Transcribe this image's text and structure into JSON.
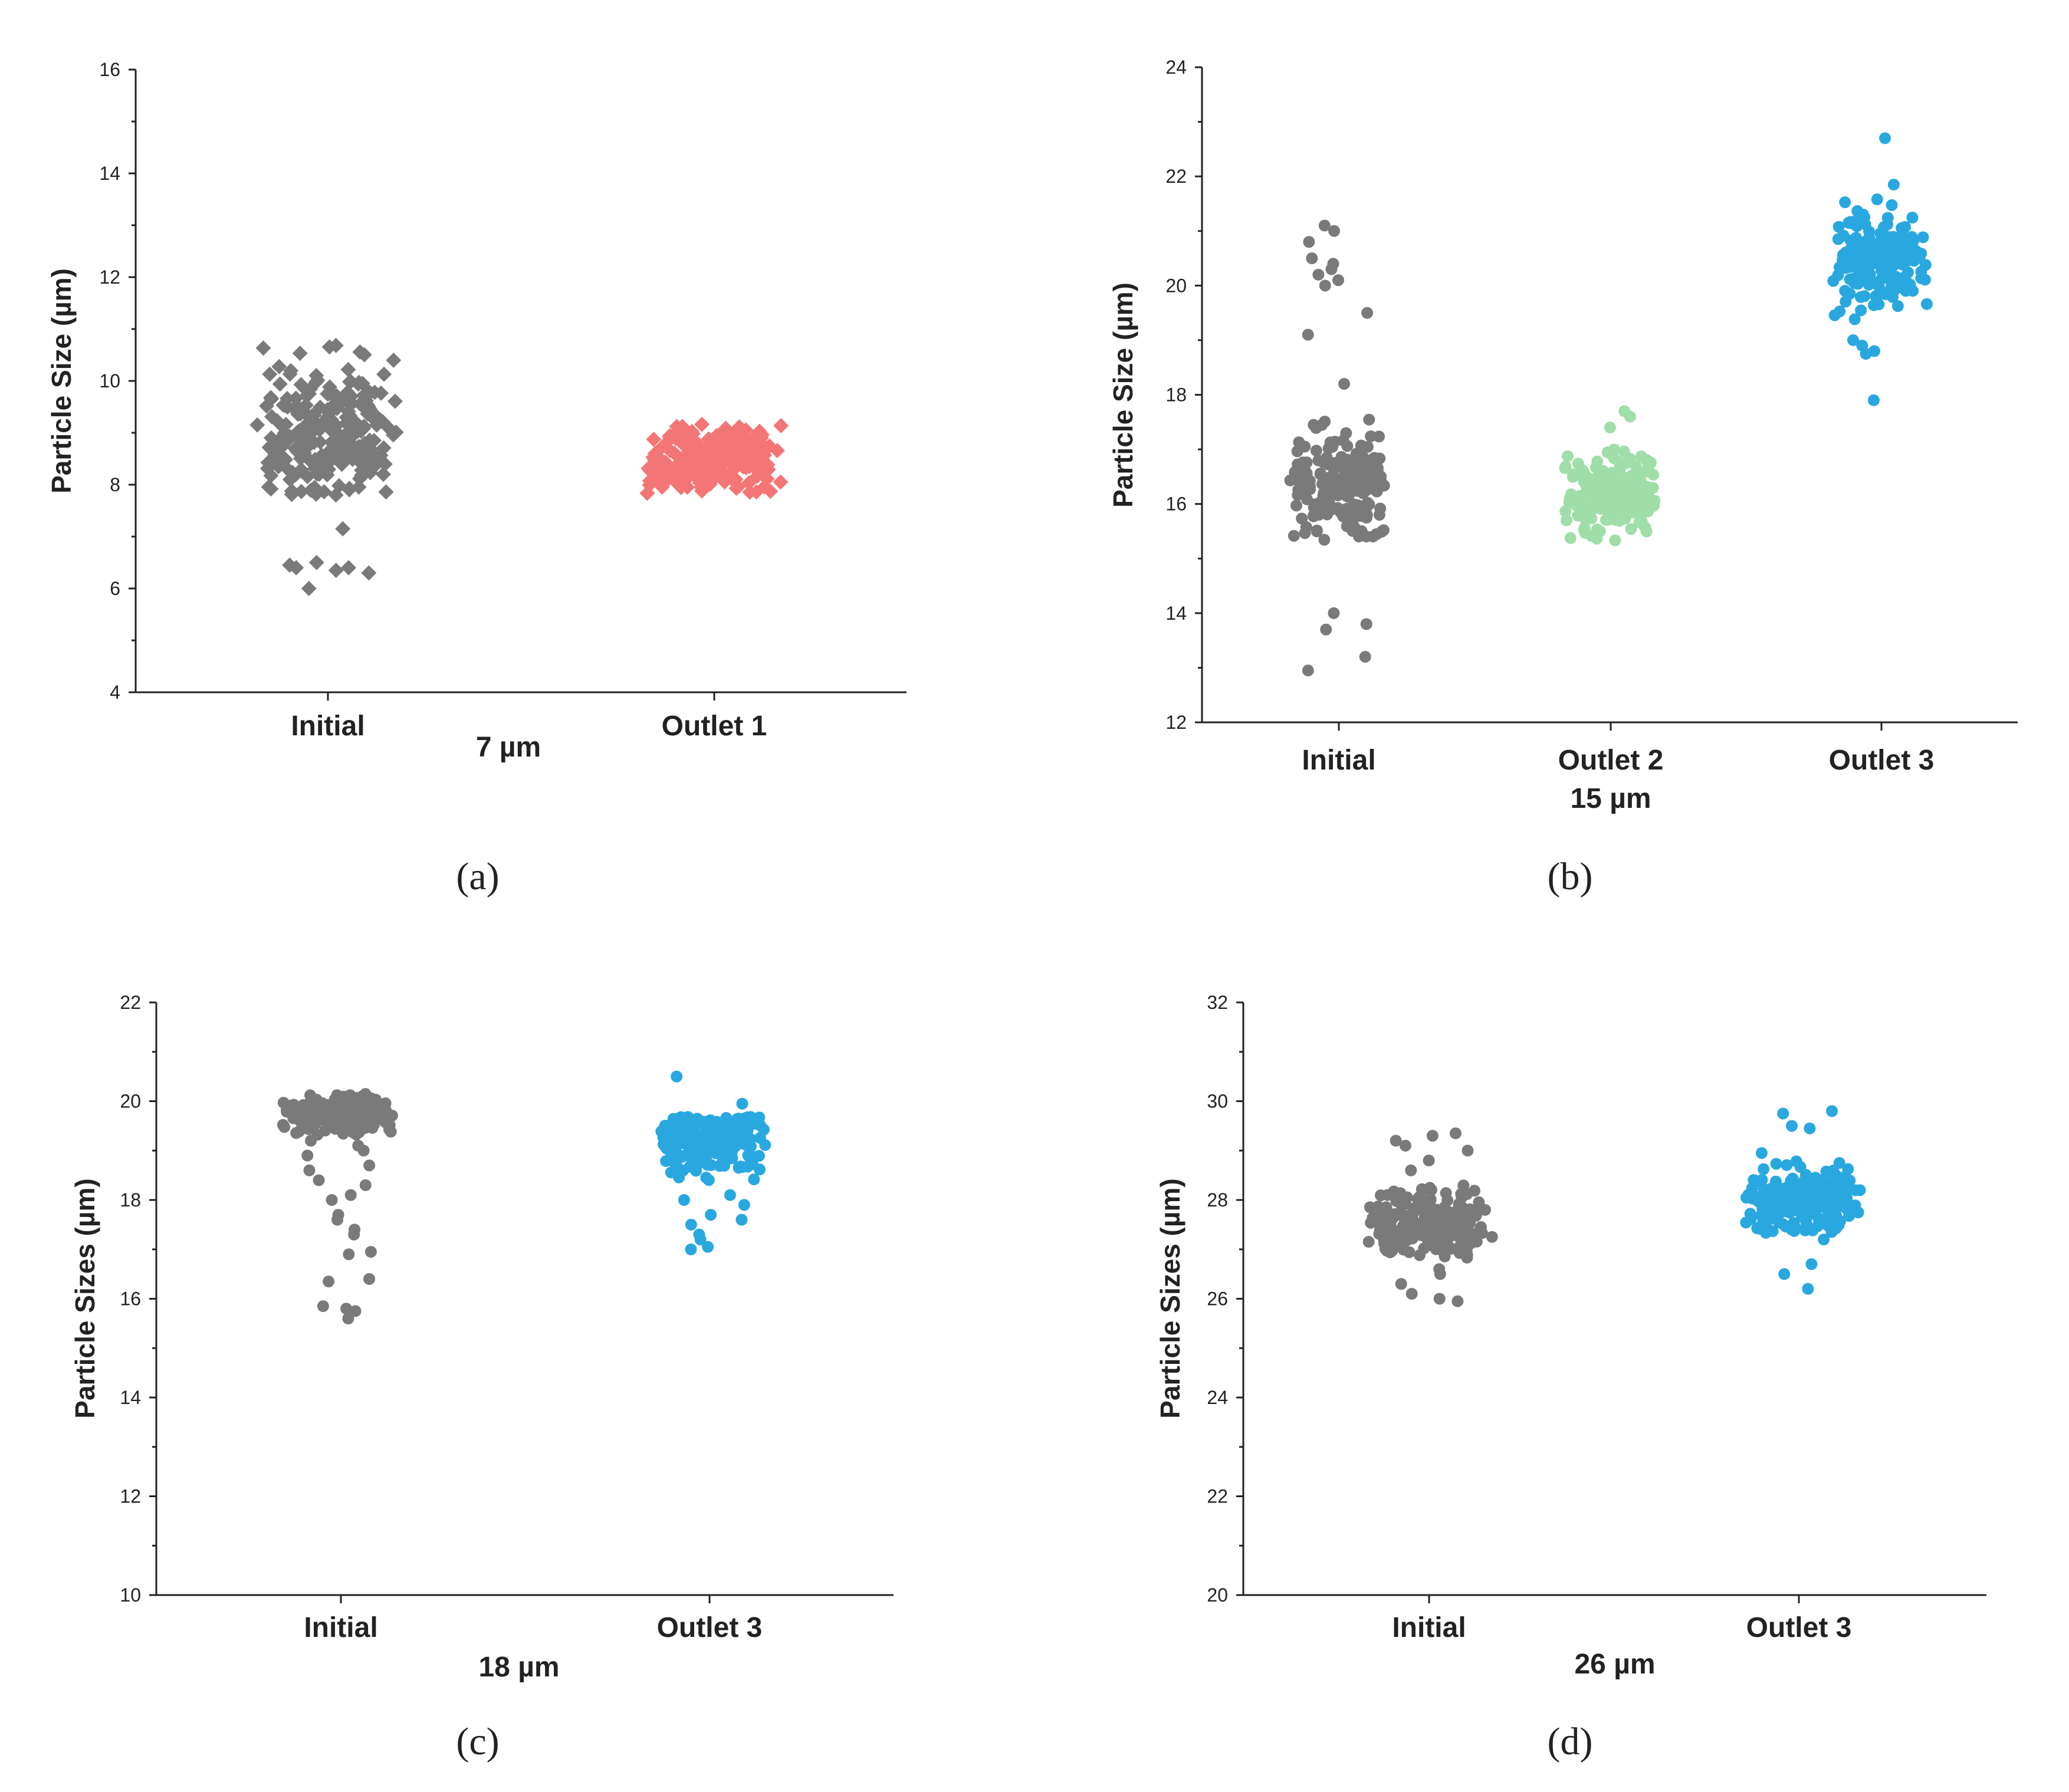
{
  "chart_data": [
    {
      "panel": "(a)",
      "type": "scatter",
      "ylabel": "Particle Size (µm)",
      "ylim": [
        4,
        16
      ],
      "yticks": [
        4,
        6,
        8,
        10,
        12,
        14,
        16
      ],
      "categories": [
        "Initial",
        "Outlet 1"
      ],
      "subtitle": "7 µm",
      "marker": "diamond",
      "series": [
        {
          "name": "Initial",
          "color": "#7a7a7a",
          "center": 9.0,
          "spread": 0.65,
          "min": 7.8,
          "max": 10.7,
          "count": 260,
          "outliers": [
            6.5,
            6.45,
            6.4,
            6.35,
            6.3,
            6.4,
            6.0,
            7.15
          ]
        },
        {
          "name": "Outlet 1",
          "color": "#f47576",
          "center": 8.5,
          "spread": 0.3,
          "min": 7.8,
          "max": 9.2,
          "count": 240,
          "outliers": []
        }
      ]
    },
    {
      "panel": "(b)",
      "type": "scatter",
      "ylabel": "Particle Size (µm)",
      "ylim": [
        12,
        24
      ],
      "yticks": [
        12,
        14,
        16,
        18,
        20,
        22,
        24
      ],
      "categories": [
        "Initial",
        "Outlet 2",
        "Outlet 3"
      ],
      "subtitle": "15 µm",
      "marker": "circle",
      "series": [
        {
          "name": "Initial",
          "color": "#7a7a7a",
          "center": 16.3,
          "spread": 0.45,
          "min": 15.0,
          "max": 17.8,
          "count": 200,
          "outliers": [
            20.2,
            20.4,
            20.1,
            20.0,
            20.5,
            20.8,
            21.0,
            21.1,
            20.3,
            19.5,
            19.1,
            18.2,
            14.0,
            13.8,
            13.7,
            13.2,
            12.95
          ]
        },
        {
          "name": "Outlet 2",
          "color": "#9fdea8",
          "center": 16.2,
          "spread": 0.35,
          "min": 15.3,
          "max": 17.0,
          "count": 180,
          "outliers": [
            17.6,
            17.7,
            17.4
          ]
        },
        {
          "name": "Outlet 3",
          "color": "#29a8e0",
          "center": 20.4,
          "spread": 0.45,
          "min": 19.2,
          "max": 21.6,
          "count": 170,
          "outliers": [
            22.7,
            21.85,
            18.75,
            18.9,
            18.8,
            17.9,
            19.0
          ]
        }
      ]
    },
    {
      "panel": "(c)",
      "type": "scatter",
      "ylabel": "Particle Sizes (µm)",
      "ylim": [
        10,
        22
      ],
      "yticks": [
        10,
        12,
        14,
        16,
        18,
        20,
        22
      ],
      "categories": [
        "Initial",
        "Outlet 3"
      ],
      "subtitle": "18 µm",
      "marker": "circle",
      "series": [
        {
          "name": "Initial",
          "color": "#7a7a7a",
          "center": 19.75,
          "spread": 0.18,
          "min": 19.3,
          "max": 20.15,
          "count": 230,
          "outliers": [
            19.0,
            18.9,
            18.7,
            18.6,
            18.4,
            18.1,
            18.0,
            17.7,
            17.6,
            17.4,
            17.3,
            16.95,
            16.9,
            16.4,
            16.35,
            15.85,
            15.8,
            15.75,
            15.6,
            19.2,
            19.1,
            18.3
          ]
        },
        {
          "name": "Outlet 3",
          "color": "#29a8e0",
          "center": 19.2,
          "spread": 0.35,
          "min": 18.2,
          "max": 19.7,
          "count": 200,
          "outliers": [
            20.5,
            19.95,
            18.0,
            17.9,
            17.7,
            17.6,
            17.5,
            17.3,
            17.2,
            17.05,
            17.0,
            18.1
          ]
        }
      ]
    },
    {
      "panel": "(d)",
      "type": "scatter",
      "ylabel": "Particle Sizes (µm)",
      "ylim": [
        20,
        32
      ],
      "yticks": [
        20,
        22,
        24,
        26,
        28,
        30,
        32
      ],
      "categories": [
        "Initial",
        "Outlet 3"
      ],
      "subtitle": "26 µm",
      "marker": "circle",
      "series": [
        {
          "name": "Initial",
          "color": "#7a7a7a",
          "center": 27.5,
          "spread": 0.35,
          "min": 26.8,
          "max": 28.3,
          "count": 200,
          "outliers": [
            29.35,
            29.3,
            29.2,
            29.1,
            29.0,
            28.8,
            28.6,
            26.5,
            26.3,
            26.1,
            26.0,
            25.95,
            26.6
          ]
        },
        {
          "name": "Outlet 3",
          "color": "#29a8e0",
          "center": 28.0,
          "spread": 0.35,
          "min": 27.3,
          "max": 28.8,
          "count": 200,
          "outliers": [
            29.8,
            29.75,
            29.5,
            29.45,
            28.95,
            26.7,
            26.5,
            26.2,
            27.2
          ]
        }
      ]
    }
  ]
}
